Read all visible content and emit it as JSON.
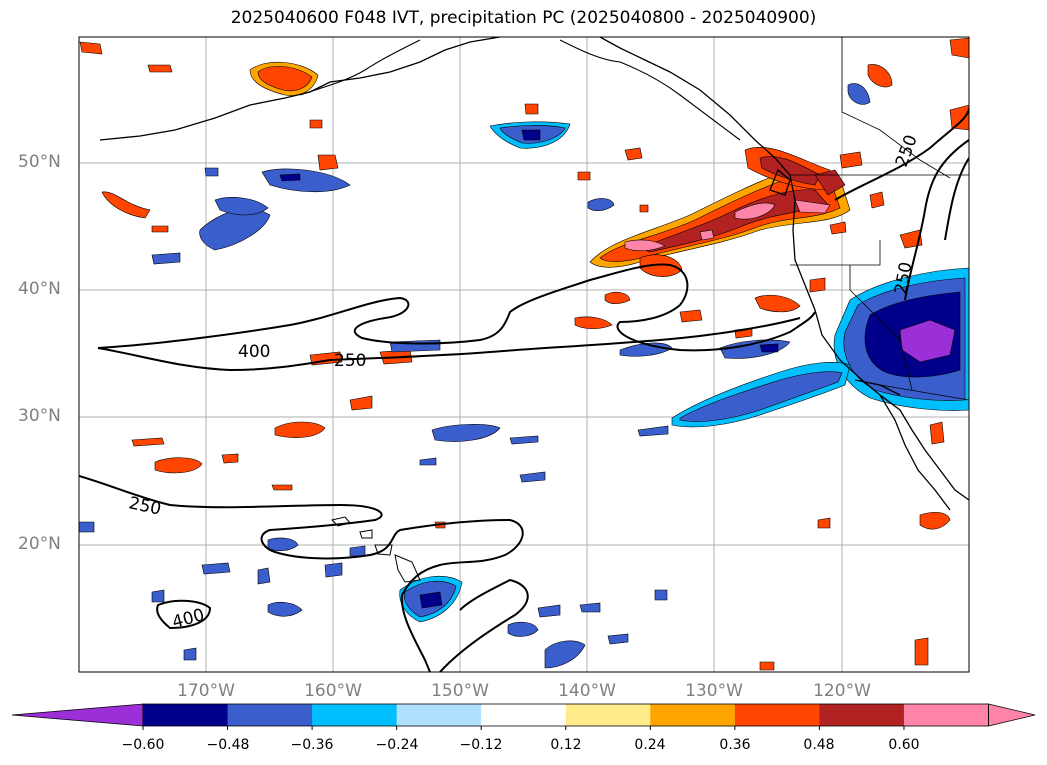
{
  "title": "2025040600 F048 IVT, precipitation PC (2025040800 - 2025040900)",
  "map": {
    "lon_range": [
      -180,
      -110
    ],
    "lat_range": [
      10,
      60
    ],
    "lat_ticks": [
      "50°N",
      "40°N",
      "30°N",
      "20°N"
    ],
    "lon_ticks": [
      "170°W",
      "160°W",
      "150°W",
      "140°W",
      "130°W",
      "120°W"
    ],
    "contour_labels": [
      "400",
      "250",
      "250",
      "400",
      "250",
      "250"
    ]
  },
  "colorbar": {
    "labels": [
      "−0.60",
      "−0.48",
      "−0.36",
      "−0.24",
      "−0.12",
      "0.12",
      "0.24",
      "0.36",
      "0.48",
      "0.60"
    ],
    "colors": [
      "#9b30d9",
      "#00008b",
      "#3a5fcd",
      "#00bfff",
      "#b0e2ff",
      "#ffffff",
      "#ffeb8a",
      "#ffa500",
      "#ff4500",
      "#b22222",
      "#ff85a8",
      "#ff85a8"
    ]
  }
}
